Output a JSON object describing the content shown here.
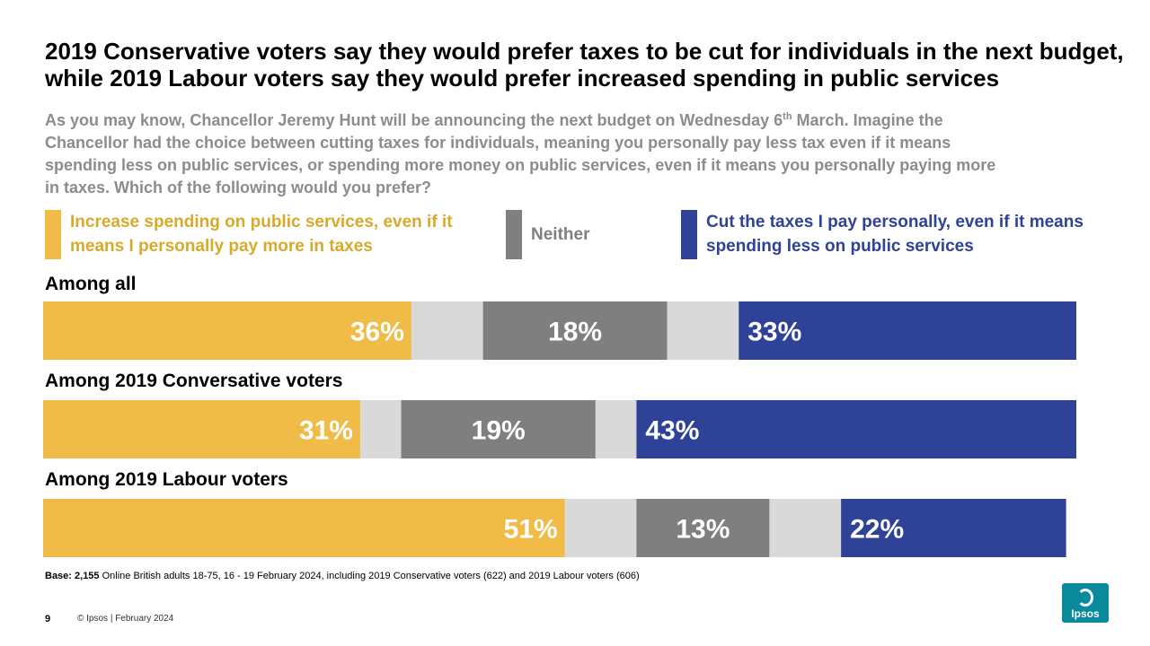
{
  "title": "2019 Conservative voters say they would prefer taxes to be cut for individuals in the next budget, while 2019 Labour voters say they would prefer increased spending in public services",
  "question": {
    "part1": "As you may know, Chancellor Jeremy Hunt will be announcing the next budget on Wednesday 6",
    "sup": "th",
    "part2": " March. Imagine the Chancellor had the choice between cutting taxes for individuals, meaning you personally pay less tax even if it means spending less on public services, or spending more money on public services, even if it means you personally paying more in taxes. Which of the following would you prefer?"
  },
  "legend": {
    "spend": "Increase spending on public services, even if it means I personally pay more in taxes",
    "neither": "Neither",
    "cut": "Cut the taxes I pay personally, even if it means spending less on public services"
  },
  "colors": {
    "spend": "#f0bc47",
    "spend_text": "#d9a92a",
    "neither": "#7f7f7f",
    "cut": "#2e4298",
    "dont_know": "#d9d9d9"
  },
  "chart_data": {
    "type": "bar",
    "orientation": "horizontal-stacked",
    "series": [
      {
        "name": "Increase spending on public services, even if it means I personally pay more in taxes",
        "key": "spend",
        "values": [
          36,
          31,
          51
        ]
      },
      {
        "name": "",
        "key": "gap1",
        "values": [
          7,
          4,
          7
        ]
      },
      {
        "name": "Neither",
        "key": "neither",
        "values": [
          18,
          19,
          13
        ]
      },
      {
        "name": "",
        "key": "gap2",
        "values": [
          7,
          4,
          7
        ]
      },
      {
        "name": "Cut the taxes I pay personally, even if it means spending less on public services",
        "key": "cut",
        "values": [
          33,
          43,
          22
        ]
      }
    ],
    "categories": [
      "Among all",
      "Among 2019 Conversative voters",
      "Among 2019 Labour voters"
    ],
    "data_labels": [
      [
        "36%",
        "18%",
        "33%"
      ],
      [
        "31%",
        "19%",
        "43%"
      ],
      [
        "51%",
        "13%",
        "22%"
      ]
    ],
    "xlim": [
      0,
      101
    ]
  },
  "base": {
    "bold": "Base: 2,155",
    "text": " Online British adults 18-75, 16 - 19 February 2024, including 2019 Conservative voters (622) and 2019 Labour voters (606)"
  },
  "footer": {
    "page_number": "9",
    "copyright": "© Ipsos | February 2024",
    "logo_text": "Ipsos"
  }
}
